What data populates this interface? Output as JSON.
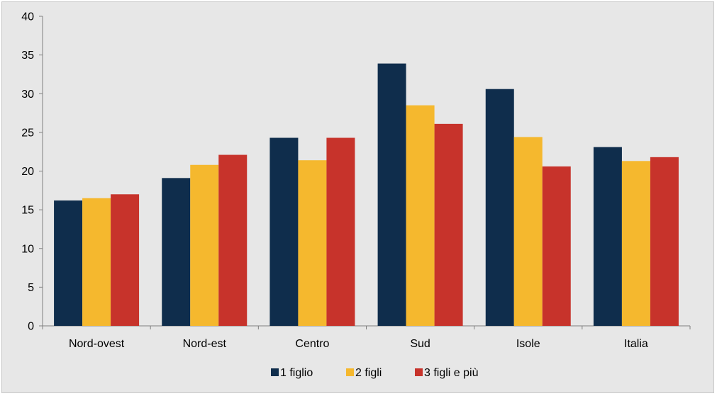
{
  "chart_data": {
    "type": "bar",
    "categories": [
      "Nord-ovest",
      "Nord-est",
      "Centro",
      "Sud",
      "Isole",
      "Italia"
    ],
    "series": [
      {
        "name": "1 figlio",
        "color": "#0f2d4c",
        "values": [
          16.2,
          19.1,
          24.3,
          33.9,
          30.6,
          23.1
        ]
      },
      {
        "name": "2 figli",
        "color": "#f5b82e",
        "values": [
          16.5,
          20.8,
          21.4,
          28.5,
          24.4,
          21.3
        ]
      },
      {
        "name": "3 figli e più",
        "color": "#c7332b",
        "values": [
          17.0,
          22.1,
          24.3,
          26.1,
          20.6,
          21.8
        ]
      }
    ],
    "ylim": [
      0,
      40
    ],
    "yticks": [
      0,
      5,
      10,
      15,
      20,
      25,
      30,
      35,
      40
    ],
    "grid": false,
    "legend_position": "bottom"
  }
}
